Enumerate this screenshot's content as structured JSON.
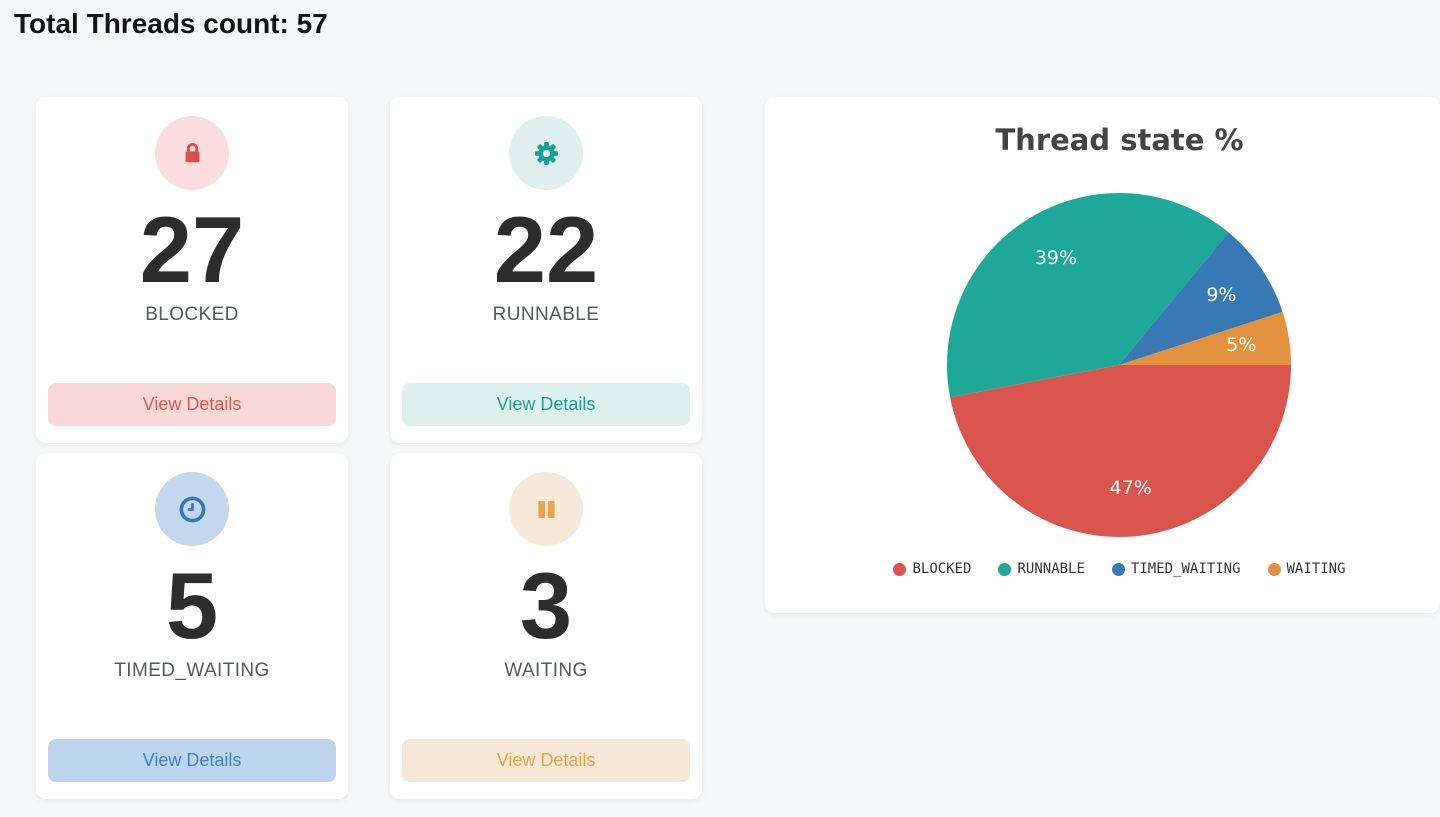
{
  "header": {
    "title": "Total Threads count: 57"
  },
  "cards": [
    {
      "state": "BLOCKED",
      "count": "27",
      "button_label": "View Details",
      "icon": "lock-icon",
      "accent": "#e05752",
      "tint": "#f9d9d7",
      "circle_bg": "#f9dedd",
      "icon_color": "#da4f4a"
    },
    {
      "state": "RUNNABLE",
      "count": "22",
      "button_label": "View Details",
      "icon": "gear-icon",
      "accent": "#16a595",
      "tint": "#ddf0ee",
      "circle_bg": "#e0f0ee",
      "icon_color": "#14a295"
    },
    {
      "state": "TIMED_WAITING",
      "count": "5",
      "button_label": "View Details",
      "icon": "clock-icon",
      "accent": "#3f82c0",
      "tint": "#bdd5ec",
      "circle_bg": "#c3d8ec",
      "icon_color": "#3678b4"
    },
    {
      "state": "WAITING",
      "count": "3",
      "button_label": "View Details",
      "icon": "pause-icon",
      "accent": "#e8a34b",
      "tint": "#f6e8d5",
      "circle_bg": "#f7ead9",
      "icon_color": "#e9a44c"
    }
  ],
  "chart_data": {
    "type": "pie",
    "title": "Thread state %",
    "categories": [
      "BLOCKED",
      "RUNNABLE",
      "TIMED_WAITING",
      "WAITING"
    ],
    "values": [
      47,
      39,
      9,
      5
    ],
    "labels": [
      "47%",
      "39%",
      "9%",
      "5%"
    ],
    "colors": [
      "#d9544d",
      "#1ea897",
      "#3878b4",
      "#e2913e"
    ],
    "start_angle_deg": 0,
    "direction": "clockwise",
    "legend_position": "bottom"
  }
}
